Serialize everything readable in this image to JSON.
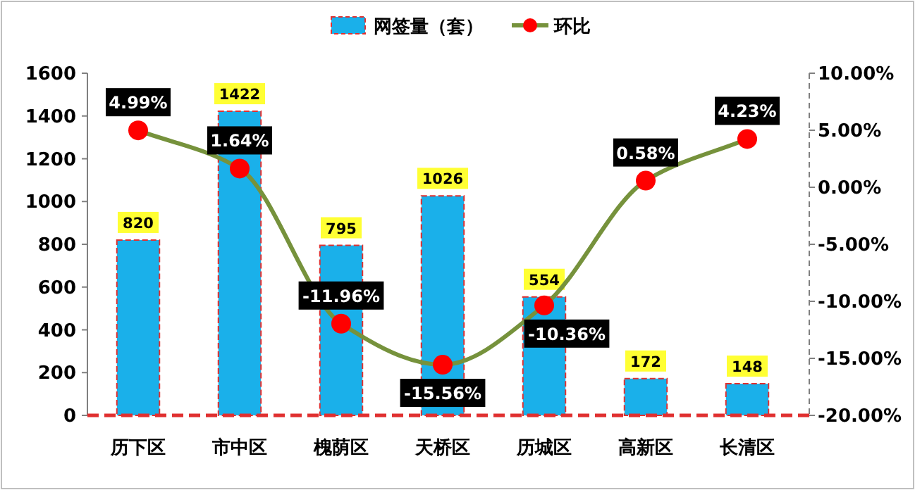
{
  "chart_data": {
    "type": "bar",
    "categories": [
      "历下区",
      "市中区",
      "槐荫区",
      "天桥区",
      "历城区",
      "高新区",
      "长清区"
    ],
    "series": [
      {
        "name": "网签量（套）",
        "color": "#1ab0ea",
        "values": [
          820,
          1422,
          795,
          1026,
          554,
          172,
          148
        ],
        "data_labels": true
      },
      {
        "name": "环比",
        "type": "line",
        "axis": "y2",
        "color": "#76923c",
        "colors": [
          "#ff0000",
          "#ff0000",
          "#ff0000",
          "#ff0000",
          "#ff0000",
          "#ff0000",
          "#ff0000"
        ],
        "marker": "circle",
        "values": [
          4.99,
          1.64,
          -11.96,
          -15.56,
          -10.36,
          0.58,
          4.23
        ],
        "value_labels": [
          "4.99%",
          "1.64%",
          "-11.96%",
          "-15.56%",
          "-10.36%",
          "0.58%",
          "4.23%"
        ]
      }
    ],
    "ylim": [
      0,
      1600
    ],
    "yticks": [
      0,
      200,
      400,
      600,
      800,
      1000,
      1200,
      1400,
      1600
    ],
    "y2lim": [
      -20,
      10
    ],
    "y2ticks": [
      {
        "value": -20,
        "label": "-20.00%"
      },
      {
        "value": -15,
        "label": "-15.00%"
      },
      {
        "value": -10,
        "label": "-10.00%"
      },
      {
        "value": -5,
        "label": "-5.00%"
      },
      {
        "value": 0,
        "label": "0.00%"
      },
      {
        "value": 5,
        "label": "5.00%"
      },
      {
        "value": 10,
        "label": "10.00%"
      }
    ],
    "legend": "top",
    "grid": false
  }
}
